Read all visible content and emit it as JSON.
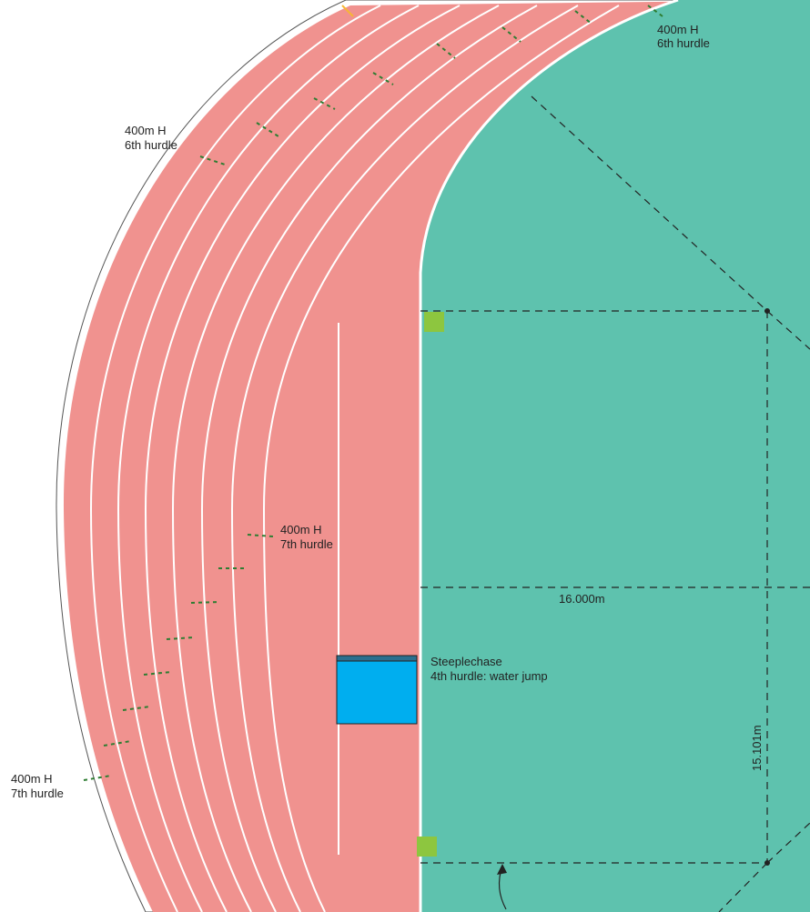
{
  "colors": {
    "track": "#f0928f",
    "field": "#5ec2ae",
    "lane_line": "#ffffff",
    "water": "#00aeef",
    "marker": "#8dc63f",
    "hurdle_mark": "#2e7d32",
    "dim_line": "#222222"
  },
  "labels": {
    "h6_top": {
      "line1": "400m H",
      "line2": "6th hurdle"
    },
    "h6_left": {
      "line1": "400m H",
      "line2": "6th hurdle"
    },
    "h7_mid": {
      "line1": "400m H",
      "line2": "7th hurdle"
    },
    "h7_left": {
      "line1": "400m H",
      "line2": "7th hurdle"
    },
    "steeple": {
      "line1": "Steeplechase",
      "line2": "4th hurdle: water jump"
    },
    "dim_horizontal": "16.000m",
    "dim_vertical": "15.101m"
  }
}
